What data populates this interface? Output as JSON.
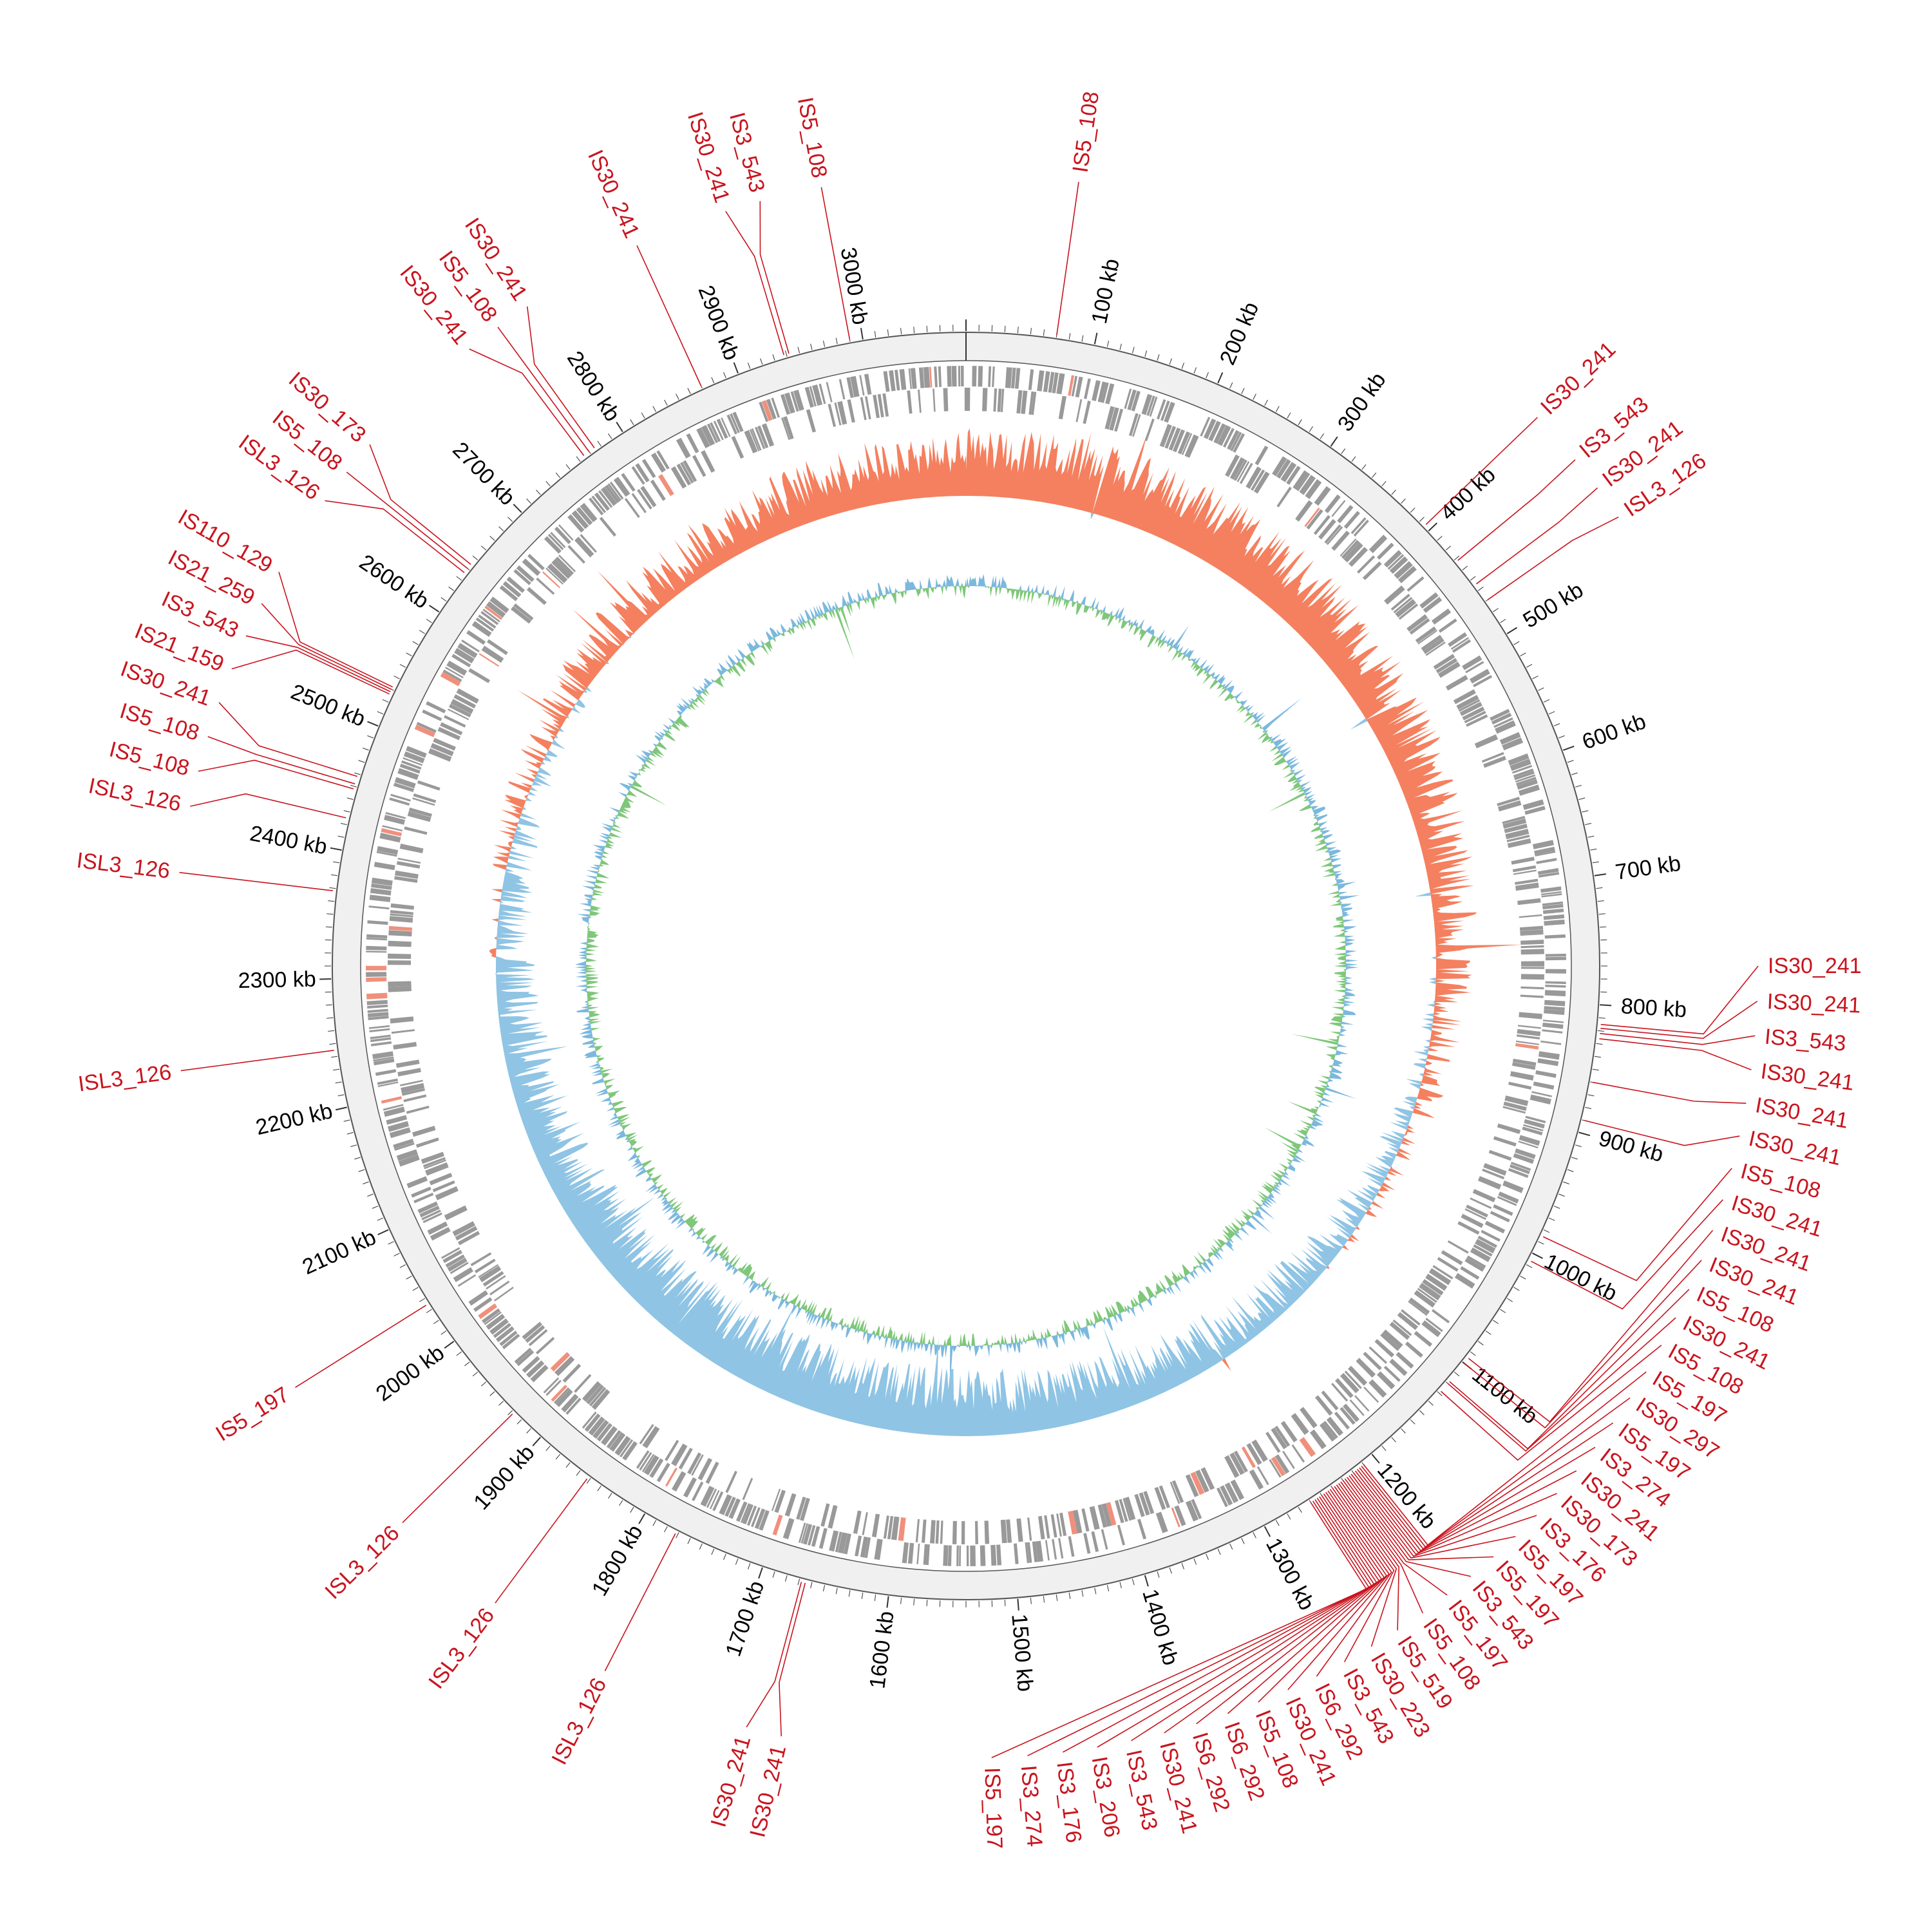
{
  "genome": {
    "length_kb": 3080,
    "scale_step_kb": 100,
    "unit": "kb"
  },
  "colors": {
    "is_red": "#c8141e",
    "cds_gray": "#999999",
    "backbone_fill": "#f0f0f0",
    "backbone_stroke": "#555555",
    "gc_skew_pos": "#f4805f",
    "gc_skew_neg": "#8fc4e4",
    "gc_content_pos": "#7fc77a",
    "gc_content_neg": "#7bb8de",
    "blast_blue": "#0a3c7d"
  },
  "scale_labels": [
    "100 kb",
    "200 kb",
    "300 kb",
    "400 kb",
    "500 kb",
    "600 kb",
    "700 kb",
    "800 kb",
    "900 kb",
    "1000 kb",
    "1100 kb",
    "1200 kb",
    "1300 kb",
    "1400 kb",
    "1500 kb",
    "1600 kb",
    "1700 kb",
    "1800 kb",
    "1900 kb",
    "2000 kb",
    "2100 kb",
    "2200 kb",
    "2300 kb",
    "2400 kb",
    "2500 kb",
    "2600 kb",
    "2700 kb",
    "2800 kb",
    "2900 kb",
    "3000 kb"
  ],
  "is_elements": [
    {
      "name": "IS5_108",
      "kb": 70
    },
    {
      "name": "IS30_241",
      "kb": 395
    },
    {
      "name": "IS3_543",
      "kb": 432
    },
    {
      "name": "IS30_241",
      "kb": 455
    },
    {
      "name": "ISL3_126",
      "kb": 470
    },
    {
      "name": "IS30_241",
      "kb": 815
    },
    {
      "name": "IS30_241",
      "kb": 818
    },
    {
      "name": "IS3_543",
      "kb": 822
    },
    {
      "name": "IS30_241",
      "kb": 826
    },
    {
      "name": "IS30_241",
      "kb": 860
    },
    {
      "name": "IS30_241",
      "kb": 890
    },
    {
      "name": "IS5_108",
      "kb": 985
    },
    {
      "name": "IS30_241",
      "kb": 1006
    },
    {
      "name": "IS30_241",
      "kb": 1095
    },
    {
      "name": "IS30_241",
      "kb": 1100
    },
    {
      "name": "IS5_108",
      "kb": 1118
    },
    {
      "name": "IS30_241",
      "kb": 1120
    },
    {
      "name": "IS5_108",
      "kb": 1128
    },
    {
      "name": "IS5_197",
      "kb": 1210
    },
    {
      "name": "IS30_297",
      "kb": 1212
    },
    {
      "name": "IS5_197",
      "kb": 1214
    },
    {
      "name": "IS3_274",
      "kb": 1216
    },
    {
      "name": "IS30_241",
      "kb": 1218
    },
    {
      "name": "IS30_173",
      "kb": 1220
    },
    {
      "name": "IS3_176",
      "kb": 1222
    },
    {
      "name": "IS5_197",
      "kb": 1224
    },
    {
      "name": "IS5_197",
      "kb": 1226
    },
    {
      "name": "IS3_543",
      "kb": 1228
    },
    {
      "name": "IS5_197",
      "kb": 1230
    },
    {
      "name": "IS5_108",
      "kb": 1232
    },
    {
      "name": "IS5_519",
      "kb": 1234
    },
    {
      "name": "IS30_223",
      "kb": 1236
    },
    {
      "name": "IS3_543",
      "kb": 1238
    },
    {
      "name": "IS6_292",
      "kb": 1240
    },
    {
      "name": "IS30_241",
      "kb": 1242
    },
    {
      "name": "IS5_108",
      "kb": 1244
    },
    {
      "name": "IS6_292",
      "kb": 1246
    },
    {
      "name": "IS6_292",
      "kb": 1248
    },
    {
      "name": "IS30_241",
      "kb": 1250
    },
    {
      "name": "IS3_543",
      "kb": 1252
    },
    {
      "name": "IS3_206",
      "kb": 1254
    },
    {
      "name": "IS3_176",
      "kb": 1256
    },
    {
      "name": "IS3_274",
      "kb": 1258
    },
    {
      "name": "IS5_197",
      "kb": 1260
    },
    {
      "name": "IS30_241",
      "kb": 1665
    },
    {
      "name": "IS30_241",
      "kb": 1668
    },
    {
      "name": "ISL3_126",
      "kb": 1772
    },
    {
      "name": "ISL3_126",
      "kb": 1852
    },
    {
      "name": "ISL3_126",
      "kb": 1928
    },
    {
      "name": "IS5_197",
      "kb": 2035
    },
    {
      "name": "ISL3_126",
      "kb": 2245
    },
    {
      "name": "ISL3_126",
      "kb": 2368
    },
    {
      "name": "ISL3_126",
      "kb": 2425
    },
    {
      "name": "IS5_108",
      "kb": 2448
    },
    {
      "name": "IS5_108",
      "kb": 2452
    },
    {
      "name": "IS30_241",
      "kb": 2458
    },
    {
      "name": "IS21_159",
      "kb": 2526
    },
    {
      "name": "IS3_543",
      "kb": 2528
    },
    {
      "name": "IS21_259",
      "kb": 2530
    },
    {
      "name": "IS110_129",
      "kb": 2532
    },
    {
      "name": "ISL3_126",
      "kb": 2636
    },
    {
      "name": "IS5_108",
      "kb": 2640
    },
    {
      "name": "IS30_173",
      "kb": 2644
    },
    {
      "name": "IS30_241",
      "kb": 2765
    },
    {
      "name": "IS5_108",
      "kb": 2770
    },
    {
      "name": "IS30_241",
      "kb": 2775
    },
    {
      "name": "IS30_241",
      "kb": 2870
    },
    {
      "name": "IS30_241",
      "kb": 2938
    },
    {
      "name": "IS3_543",
      "kb": 2942
    },
    {
      "name": "IS5_108",
      "kb": 2990
    }
  ]
}
